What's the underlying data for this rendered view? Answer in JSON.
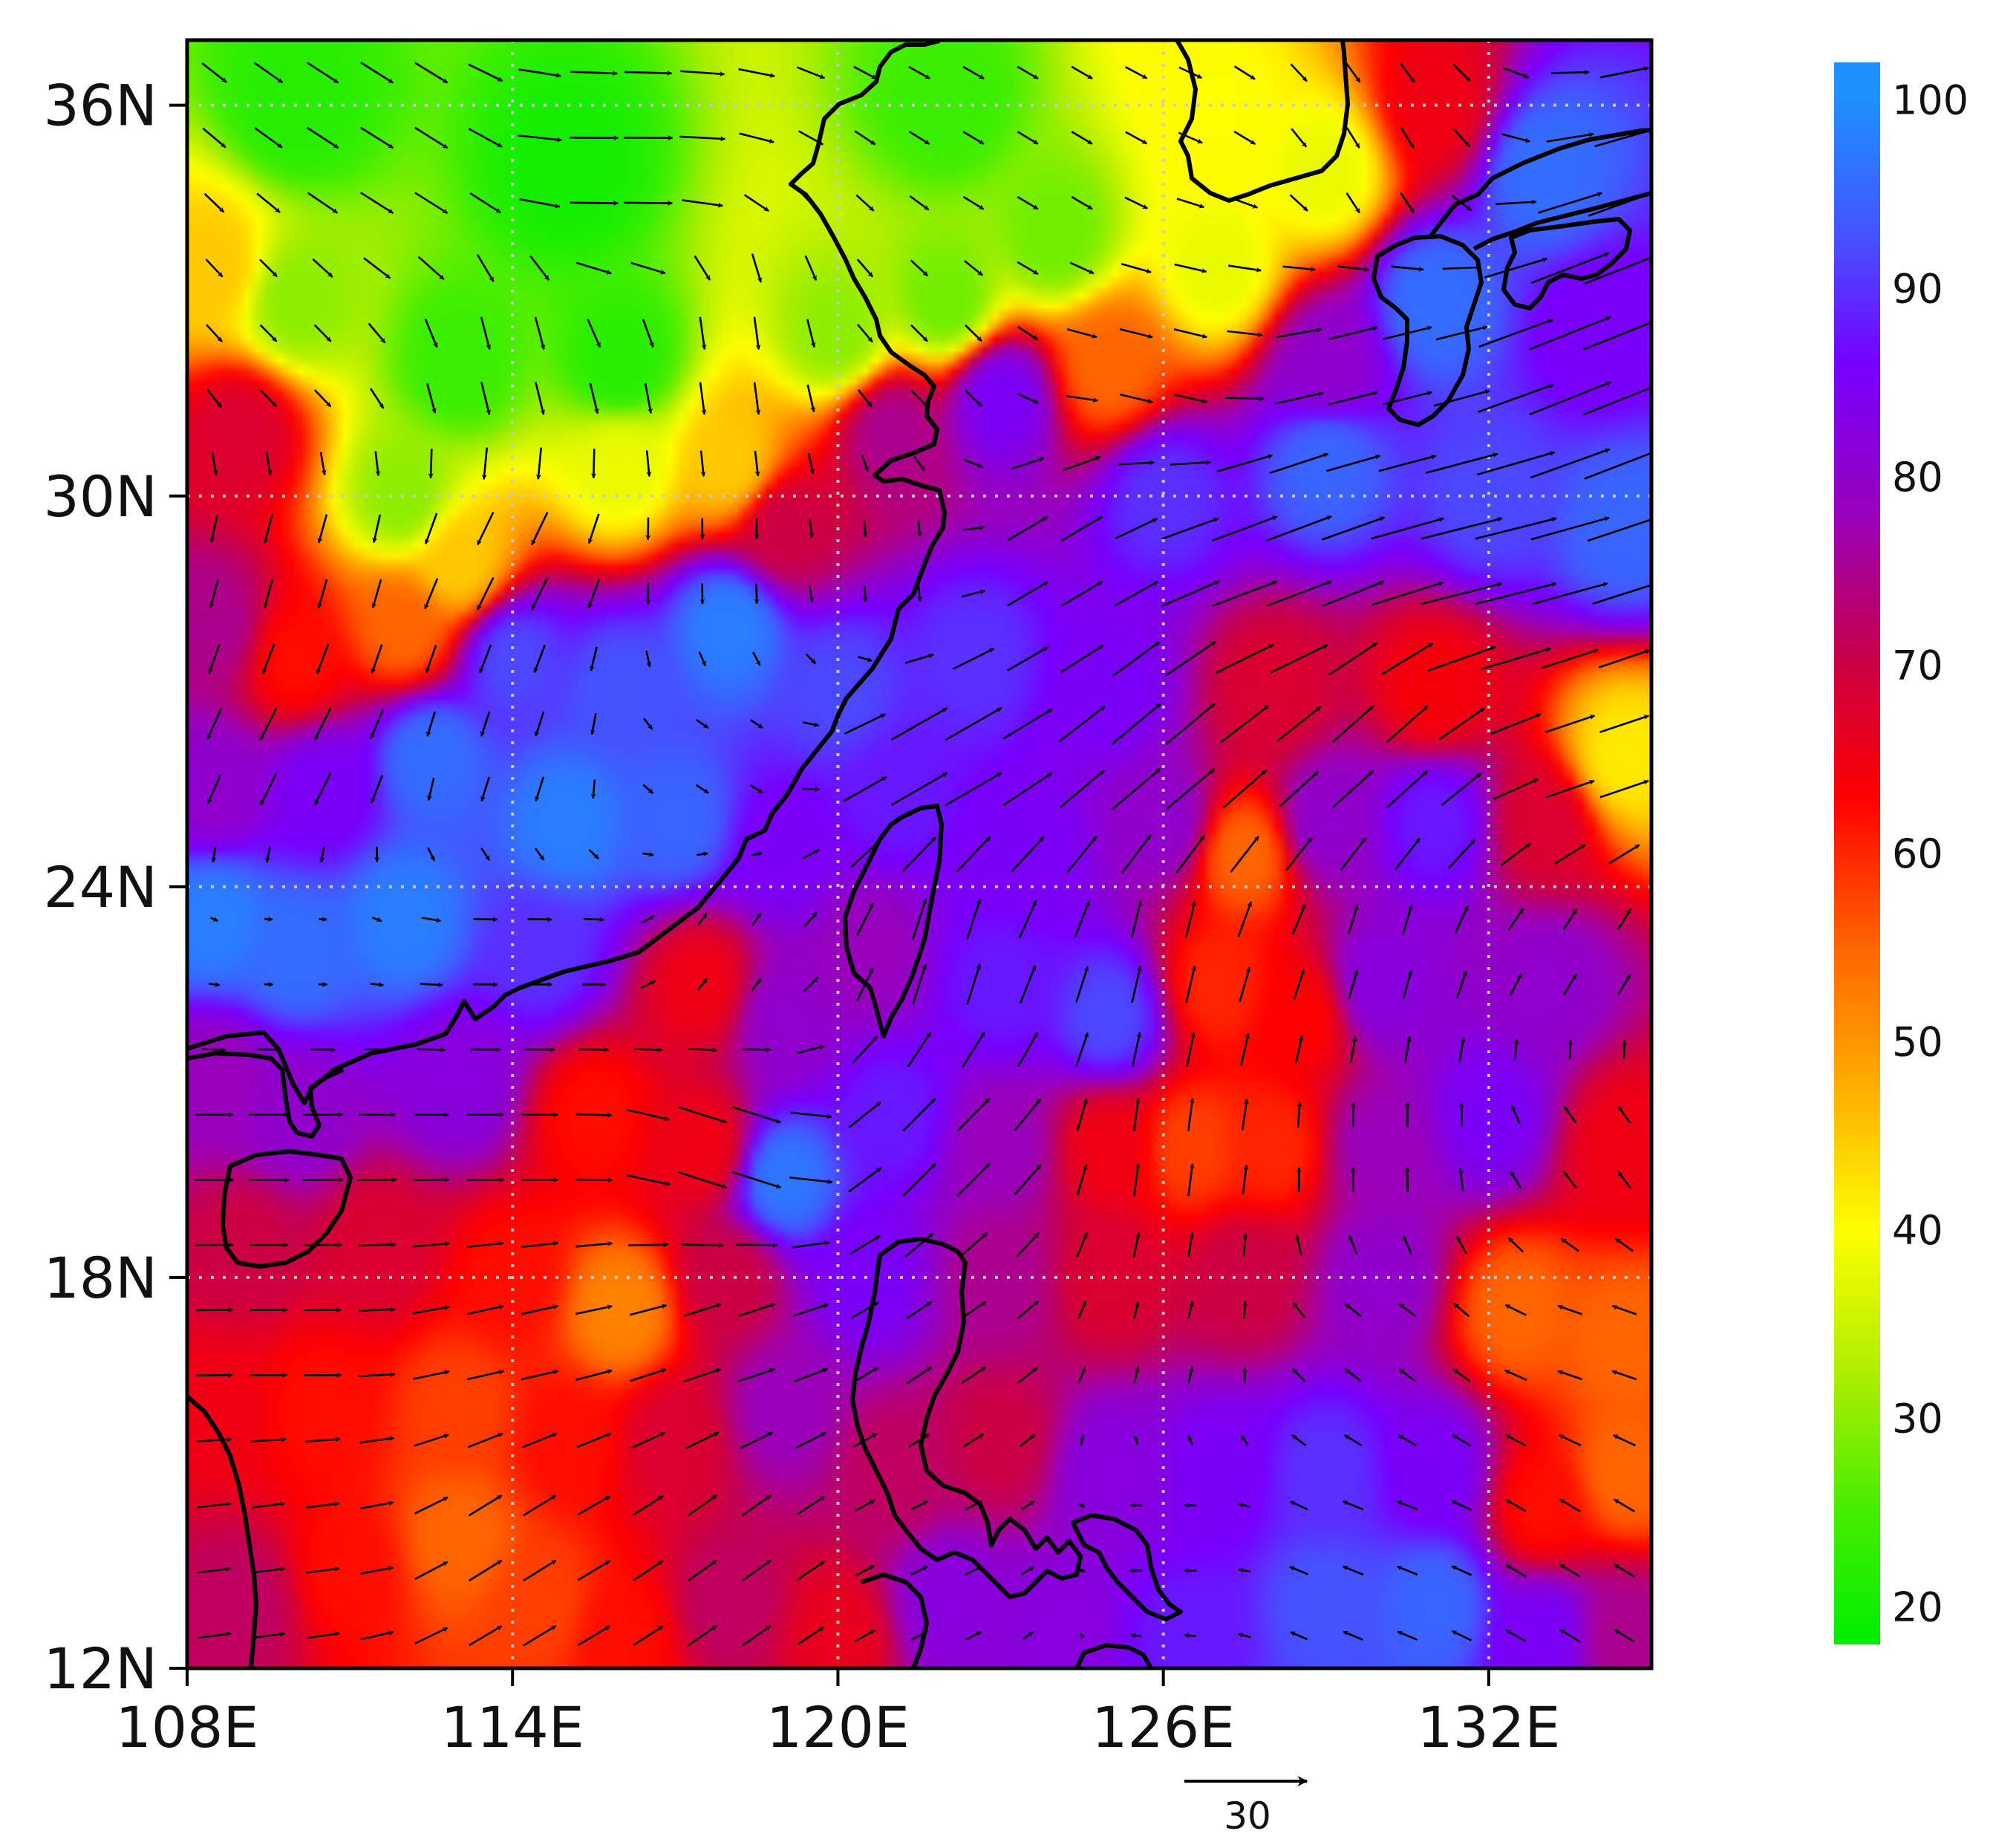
{
  "chart_data": {
    "type": "heatmap",
    "subtype": "filled-contour map with wind vector overlay",
    "title": "",
    "grid": "dotted gray graticule every 6 degrees",
    "x_axis": {
      "range_lon": [
        108,
        135
      ],
      "ticks": [
        108,
        114,
        120,
        126,
        132
      ],
      "tick_labels": [
        "108E",
        "114E",
        "120E",
        "126E",
        "132E"
      ]
    },
    "y_axis": {
      "range_lat": [
        12,
        37
      ],
      "ticks": [
        12,
        18,
        24,
        30,
        36
      ],
      "tick_labels": [
        "12N",
        "18N",
        "24N",
        "30N",
        "36N"
      ]
    },
    "colorbar": {
      "position": "right",
      "range": [
        18,
        102
      ],
      "labels": [
        "100",
        "90",
        "80",
        "70",
        "60",
        "50",
        "40",
        "30",
        "20"
      ],
      "label_values": [
        100,
        90,
        80,
        70,
        60,
        50,
        40,
        30,
        20
      ],
      "colormap": [
        {
          "value": 18,
          "color": "#00ee00"
        },
        {
          "value": 25,
          "color": "#44ee00"
        },
        {
          "value": 32,
          "color": "#aaee00"
        },
        {
          "value": 40,
          "color": "#ffff00"
        },
        {
          "value": 48,
          "color": "#ffaa00"
        },
        {
          "value": 55,
          "color": "#ff6600"
        },
        {
          "value": 63,
          "color": "#ff0000"
        },
        {
          "value": 70,
          "color": "#cc0044"
        },
        {
          "value": 78,
          "color": "#9900bb"
        },
        {
          "value": 86,
          "color": "#7700ff"
        },
        {
          "value": 93,
          "color": "#4455ff"
        },
        {
          "value": 100,
          "color": "#1e90ff"
        }
      ]
    },
    "reference_vector": {
      "label": "30",
      "magnitude": 30
    },
    "field_samples": [
      {
        "lon": 110,
        "lat": 36,
        "value": 22
      },
      {
        "lon": 115,
        "lat": 35,
        "value": 20
      },
      {
        "lon": 122,
        "lat": 36,
        "value": 24
      },
      {
        "lon": 124,
        "lat": 34,
        "value": 28
      },
      {
        "lon": 127,
        "lat": 36,
        "value": 40
      },
      {
        "lon": 129,
        "lat": 35,
        "value": 38
      },
      {
        "lon": 131,
        "lat": 36,
        "value": 65
      },
      {
        "lon": 133,
        "lat": 35,
        "value": 96
      },
      {
        "lon": 108.5,
        "lat": 33.5,
        "value": 45
      },
      {
        "lon": 110,
        "lat": 33,
        "value": 30
      },
      {
        "lon": 113,
        "lat": 32,
        "value": 24
      },
      {
        "lon": 116,
        "lat": 32,
        "value": 22
      },
      {
        "lon": 120,
        "lat": 32.5,
        "value": 30
      },
      {
        "lon": 122,
        "lat": 33,
        "value": 28
      },
      {
        "lon": 125,
        "lat": 32,
        "value": 55
      },
      {
        "lon": 127,
        "lat": 33.5,
        "value": 38
      },
      {
        "lon": 129,
        "lat": 32,
        "value": 80
      },
      {
        "lon": 131,
        "lat": 33,
        "value": 96
      },
      {
        "lon": 134,
        "lat": 32.5,
        "value": 85
      },
      {
        "lon": 109,
        "lat": 31,
        "value": 68
      },
      {
        "lon": 112,
        "lat": 30,
        "value": 30
      },
      {
        "lon": 113,
        "lat": 29,
        "value": 45
      },
      {
        "lon": 116,
        "lat": 30.5,
        "value": 38
      },
      {
        "lon": 118,
        "lat": 30.5,
        "value": 45
      },
      {
        "lon": 119,
        "lat": 29.5,
        "value": 70
      },
      {
        "lon": 121,
        "lat": 31,
        "value": 75
      },
      {
        "lon": 123,
        "lat": 31.5,
        "value": 85
      },
      {
        "lon": 126,
        "lat": 30,
        "value": 90
      },
      {
        "lon": 129,
        "lat": 30.5,
        "value": 95
      },
      {
        "lon": 132,
        "lat": 30,
        "value": 92
      },
      {
        "lon": 134.5,
        "lat": 29.5,
        "value": 95
      },
      {
        "lon": 108.5,
        "lat": 28,
        "value": 75
      },
      {
        "lon": 110,
        "lat": 27.5,
        "value": 62
      },
      {
        "lon": 112,
        "lat": 28,
        "value": 55
      },
      {
        "lon": 114,
        "lat": 27.5,
        "value": 92
      },
      {
        "lon": 116,
        "lat": 27,
        "value": 93
      },
      {
        "lon": 118,
        "lat": 28,
        "value": 98
      },
      {
        "lon": 120,
        "lat": 27,
        "value": 92
      },
      {
        "lon": 122.5,
        "lat": 27.5,
        "value": 90
      },
      {
        "lon": 125,
        "lat": 27,
        "value": 85
      },
      {
        "lon": 128,
        "lat": 27,
        "value": 68
      },
      {
        "lon": 131,
        "lat": 27,
        "value": 64
      },
      {
        "lon": 134.5,
        "lat": 26,
        "value": 42
      },
      {
        "lon": 108.5,
        "lat": 25.5,
        "value": 80
      },
      {
        "lon": 110.5,
        "lat": 25.5,
        "value": 85
      },
      {
        "lon": 112.5,
        "lat": 26,
        "value": 96
      },
      {
        "lon": 115,
        "lat": 25,
        "value": 98
      },
      {
        "lon": 117,
        "lat": 25,
        "value": 95
      },
      {
        "lon": 119,
        "lat": 24.5,
        "value": 85
      },
      {
        "lon": 121,
        "lat": 25.5,
        "value": 88
      },
      {
        "lon": 123.5,
        "lat": 24.5,
        "value": 85
      },
      {
        "lon": 126,
        "lat": 25,
        "value": 80
      },
      {
        "lon": 127.5,
        "lat": 24.5,
        "value": 55
      },
      {
        "lon": 129,
        "lat": 25,
        "value": 80
      },
      {
        "lon": 131,
        "lat": 25,
        "value": 88
      },
      {
        "lon": 133,
        "lat": 25,
        "value": 68
      },
      {
        "lon": 108.5,
        "lat": 23.5,
        "value": 98
      },
      {
        "lon": 110,
        "lat": 23,
        "value": 96
      },
      {
        "lon": 112,
        "lat": 23.5,
        "value": 98
      },
      {
        "lon": 114.5,
        "lat": 23,
        "value": 90
      },
      {
        "lon": 117.5,
        "lat": 22.5,
        "value": 65
      },
      {
        "lon": 119,
        "lat": 22,
        "value": 80
      },
      {
        "lon": 120.5,
        "lat": 23,
        "value": 78
      },
      {
        "lon": 123,
        "lat": 22.5,
        "value": 88
      },
      {
        "lon": 125,
        "lat": 22,
        "value": 92
      },
      {
        "lon": 127,
        "lat": 22.5,
        "value": 60
      },
      {
        "lon": 128.5,
        "lat": 22,
        "value": 63
      },
      {
        "lon": 130,
        "lat": 22.5,
        "value": 82
      },
      {
        "lon": 133,
        "lat": 22.5,
        "value": 80
      },
      {
        "lon": 108.5,
        "lat": 21,
        "value": 78
      },
      {
        "lon": 110,
        "lat": 20.5,
        "value": 80
      },
      {
        "lon": 113,
        "lat": 21,
        "value": 82
      },
      {
        "lon": 115.5,
        "lat": 20.5,
        "value": 62
      },
      {
        "lon": 117.5,
        "lat": 20,
        "value": 65
      },
      {
        "lon": 119,
        "lat": 19.5,
        "value": 97
      },
      {
        "lon": 121,
        "lat": 20.5,
        "value": 88
      },
      {
        "lon": 123,
        "lat": 20,
        "value": 78
      },
      {
        "lon": 125,
        "lat": 20,
        "value": 65
      },
      {
        "lon": 126.5,
        "lat": 20,
        "value": 58
      },
      {
        "lon": 128,
        "lat": 20,
        "value": 60
      },
      {
        "lon": 130,
        "lat": 20,
        "value": 78
      },
      {
        "lon": 132,
        "lat": 20.5,
        "value": 85
      },
      {
        "lon": 134.5,
        "lat": 20,
        "value": 65
      },
      {
        "lon": 109,
        "lat": 18.5,
        "value": 70
      },
      {
        "lon": 111.5,
        "lat": 18.5,
        "value": 68
      },
      {
        "lon": 114,
        "lat": 18,
        "value": 62
      },
      {
        "lon": 116,
        "lat": 17.5,
        "value": 52
      },
      {
        "lon": 118,
        "lat": 18,
        "value": 70
      },
      {
        "lon": 120.5,
        "lat": 18,
        "value": 85
      },
      {
        "lon": 123,
        "lat": 18,
        "value": 75
      },
      {
        "lon": 125,
        "lat": 18,
        "value": 68
      },
      {
        "lon": 127.5,
        "lat": 18,
        "value": 70
      },
      {
        "lon": 130,
        "lat": 18,
        "value": 80
      },
      {
        "lon": 132.5,
        "lat": 17.5,
        "value": 55
      },
      {
        "lon": 134.5,
        "lat": 17,
        "value": 55
      },
      {
        "lon": 108.5,
        "lat": 16,
        "value": 65
      },
      {
        "lon": 110.5,
        "lat": 16,
        "value": 62
      },
      {
        "lon": 113,
        "lat": 16,
        "value": 58
      },
      {
        "lon": 115,
        "lat": 15.5,
        "value": 62
      },
      {
        "lon": 117,
        "lat": 15.5,
        "value": 68
      },
      {
        "lon": 119,
        "lat": 16,
        "value": 78
      },
      {
        "lon": 121,
        "lat": 15,
        "value": 72
      },
      {
        "lon": 123,
        "lat": 15.5,
        "value": 70
      },
      {
        "lon": 125,
        "lat": 15,
        "value": 82
      },
      {
        "lon": 127,
        "lat": 15,
        "value": 85
      },
      {
        "lon": 129,
        "lat": 15,
        "value": 90
      },
      {
        "lon": 131,
        "lat": 15,
        "value": 85
      },
      {
        "lon": 133,
        "lat": 14.5,
        "value": 62
      },
      {
        "lon": 134.5,
        "lat": 15,
        "value": 55
      },
      {
        "lon": 109,
        "lat": 13,
        "value": 72
      },
      {
        "lon": 111,
        "lat": 13.5,
        "value": 62
      },
      {
        "lon": 113,
        "lat": 14,
        "value": 55
      },
      {
        "lon": 114.5,
        "lat": 13,
        "value": 58
      },
      {
        "lon": 116,
        "lat": 12.5,
        "value": 62
      },
      {
        "lon": 118,
        "lat": 13,
        "value": 72
      },
      {
        "lon": 120,
        "lat": 12.5,
        "value": 66
      },
      {
        "lon": 122,
        "lat": 13,
        "value": 82
      },
      {
        "lon": 124,
        "lat": 12.5,
        "value": 82
      },
      {
        "lon": 126.5,
        "lat": 12.5,
        "value": 88
      },
      {
        "lon": 129,
        "lat": 13,
        "value": 93
      },
      {
        "lon": 131,
        "lat": 13,
        "value": 95
      },
      {
        "lon": 133,
        "lat": 12.5,
        "value": 85
      },
      {
        "lon": 134.5,
        "lat": 12.5,
        "value": 75
      }
    ],
    "wind_samples": [
      {
        "lon": 112,
        "lat": 35,
        "u": 8,
        "v": -5
      },
      {
        "lon": 116,
        "lat": 35,
        "u": 12,
        "v": 0
      },
      {
        "lon": 124,
        "lat": 35,
        "u": 5,
        "v": -3
      },
      {
        "lon": 130,
        "lat": 35,
        "u": 3,
        "v": -5
      },
      {
        "lon": 110,
        "lat": 32,
        "u": 4,
        "v": -4
      },
      {
        "lon": 114,
        "lat": 32,
        "u": 2,
        "v": -8
      },
      {
        "lon": 118,
        "lat": 32,
        "u": 1,
        "v": -8
      },
      {
        "lon": 122,
        "lat": 32,
        "u": 4,
        "v": -4
      },
      {
        "lon": 126,
        "lat": 32,
        "u": 8,
        "v": -2
      },
      {
        "lon": 130,
        "lat": 32,
        "u": 12,
        "v": 3
      },
      {
        "lon": 134,
        "lat": 32,
        "u": 20,
        "v": 8
      },
      {
        "lon": 110,
        "lat": 29,
        "u": -2,
        "v": -7
      },
      {
        "lon": 114,
        "lat": 29,
        "u": -4,
        "v": -8
      },
      {
        "lon": 118,
        "lat": 29,
        "u": 0,
        "v": -5
      },
      {
        "lon": 121,
        "lat": 29,
        "u": 0,
        "v": -4
      },
      {
        "lon": 124,
        "lat": 29,
        "u": 10,
        "v": 6
      },
      {
        "lon": 128,
        "lat": 29,
        "u": 16,
        "v": 6
      },
      {
        "lon": 132,
        "lat": 29,
        "u": 20,
        "v": 5
      },
      {
        "lon": 110,
        "lat": 26,
        "u": -4,
        "v": -8
      },
      {
        "lon": 114,
        "lat": 26,
        "u": -2,
        "v": -6
      },
      {
        "lon": 118,
        "lat": 26,
        "u": 3,
        "v": -2
      },
      {
        "lon": 122,
        "lat": 26,
        "u": 14,
        "v": 8
      },
      {
        "lon": 126,
        "lat": 26,
        "u": 12,
        "v": 10
      },
      {
        "lon": 130,
        "lat": 26,
        "u": 10,
        "v": 9
      },
      {
        "lon": 134,
        "lat": 26,
        "u": 12,
        "v": 4
      },
      {
        "lon": 110,
        "lat": 23,
        "u": 2,
        "v": 0
      },
      {
        "lon": 114,
        "lat": 23,
        "u": 6,
        "v": 0
      },
      {
        "lon": 118,
        "lat": 23,
        "u": 2,
        "v": 3
      },
      {
        "lon": 122,
        "lat": 23,
        "u": 3,
        "v": 10
      },
      {
        "lon": 126,
        "lat": 23,
        "u": 2,
        "v": 9
      },
      {
        "lon": 130,
        "lat": 23,
        "u": 2,
        "v": 7
      },
      {
        "lon": 134,
        "lat": 23,
        "u": 3,
        "v": 5
      },
      {
        "lon": 110,
        "lat": 20,
        "u": 10,
        "v": 0
      },
      {
        "lon": 114,
        "lat": 20,
        "u": 9,
        "v": 0
      },
      {
        "lon": 118,
        "lat": 20,
        "u": 12,
        "v": -4
      },
      {
        "lon": 122,
        "lat": 20,
        "u": 8,
        "v": 8
      },
      {
        "lon": 126,
        "lat": 20,
        "u": 1,
        "v": 8
      },
      {
        "lon": 130,
        "lat": 20,
        "u": 0,
        "v": 6
      },
      {
        "lon": 134,
        "lat": 20,
        "u": -3,
        "v": 4
      },
      {
        "lon": 110,
        "lat": 17,
        "u": 9,
        "v": 0
      },
      {
        "lon": 114,
        "lat": 17,
        "u": 9,
        "v": 2
      },
      {
        "lon": 118,
        "lat": 17,
        "u": 9,
        "v": 3
      },
      {
        "lon": 122,
        "lat": 17,
        "u": 6,
        "v": 4
      },
      {
        "lon": 126,
        "lat": 17,
        "u": 1,
        "v": 4
      },
      {
        "lon": 130,
        "lat": 17,
        "u": -4,
        "v": 3
      },
      {
        "lon": 134,
        "lat": 17,
        "u": -6,
        "v": 2
      },
      {
        "lon": 110,
        "lat": 14,
        "u": 8,
        "v": 1
      },
      {
        "lon": 114,
        "lat": 14,
        "u": 8,
        "v": 5
      },
      {
        "lon": 118,
        "lat": 14,
        "u": 7,
        "v": 5
      },
      {
        "lon": 122,
        "lat": 14,
        "u": 4,
        "v": 2
      },
      {
        "lon": 126,
        "lat": 14,
        "u": -3,
        "v": 0
      },
      {
        "lon": 130,
        "lat": 14,
        "u": -5,
        "v": 2
      },
      {
        "lon": 134,
        "lat": 14,
        "u": -5,
        "v": 3
      }
    ]
  }
}
